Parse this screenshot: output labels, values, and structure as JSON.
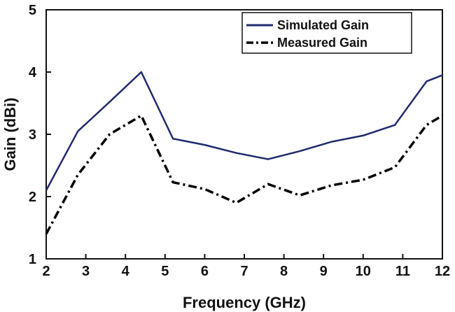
{
  "chart_data": {
    "type": "line",
    "title": "",
    "xlabel": "Frequency (GHz)",
    "ylabel": "Gain (dBi)",
    "xlim": [
      2,
      12
    ],
    "ylim": [
      1,
      5
    ],
    "xticks": [
      2,
      3,
      4,
      5,
      6,
      7,
      8,
      9,
      10,
      11,
      12
    ],
    "yticks": [
      1,
      2,
      3,
      4,
      5
    ],
    "grid": false,
    "legend_position": "top-right",
    "series": [
      {
        "name": "Simulated Gain",
        "style": "solid",
        "color": "#1f2a6e",
        "x": [
          2.0,
          2.8,
          3.6,
          4.4,
          5.2,
          6.0,
          6.8,
          7.6,
          8.4,
          9.2,
          10.0,
          10.8,
          11.6,
          12.0
        ],
        "y": [
          2.1,
          3.05,
          3.52,
          4.0,
          2.93,
          2.83,
          2.7,
          2.6,
          2.73,
          2.88,
          2.98,
          3.15,
          3.85,
          3.95
        ]
      },
      {
        "name": "Measured Gain",
        "style": "dash-dot",
        "color": "#000000",
        "x": [
          2.0,
          2.8,
          3.6,
          4.4,
          5.2,
          6.0,
          6.8,
          7.6,
          8.4,
          9.2,
          10.0,
          10.8,
          11.6,
          12.0
        ],
        "y": [
          1.4,
          2.35,
          3.0,
          3.3,
          2.23,
          2.12,
          1.9,
          2.2,
          2.02,
          2.18,
          2.27,
          2.47,
          3.15,
          3.3
        ]
      }
    ]
  }
}
